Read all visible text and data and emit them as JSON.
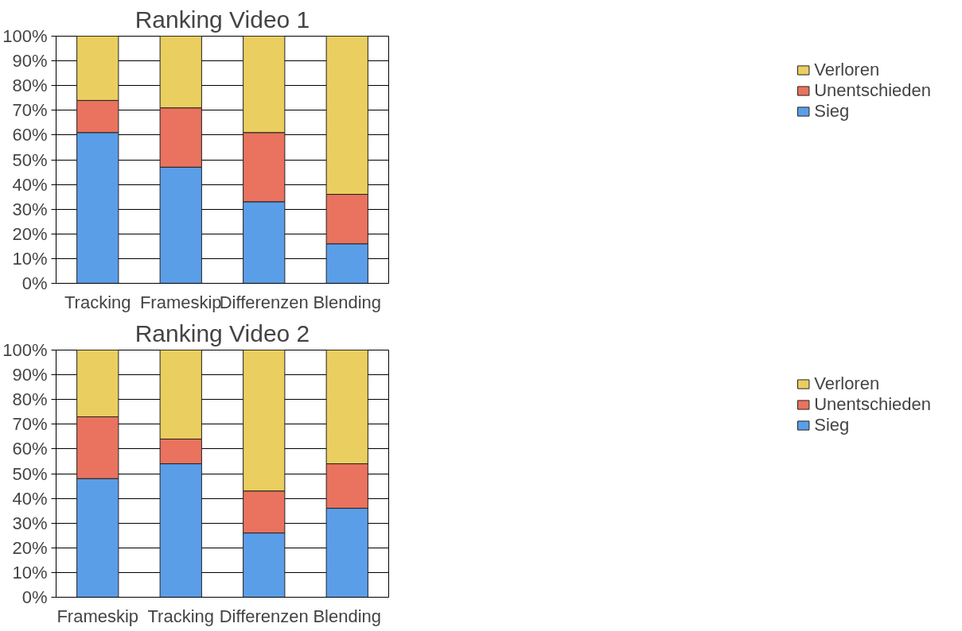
{
  "chart_data": [
    {
      "type": "bar",
      "stacked": true,
      "title": "Ranking Video 1",
      "categories": [
        "Tracking",
        "Frameskip",
        "Differenzen",
        "Blending"
      ],
      "series": [
        {
          "name": "Sieg",
          "color": "#5b9ee8",
          "values": [
            61,
            47,
            33,
            16
          ]
        },
        {
          "name": "Unentschieden",
          "color": "#e9735e",
          "values": [
            13,
            24,
            28,
            20
          ]
        },
        {
          "name": "Verloren",
          "color": "#eacf60",
          "values": [
            26,
            29,
            39,
            64
          ]
        }
      ],
      "ylim": [
        0,
        100
      ],
      "yticks": [
        {
          "value": 0,
          "label": "0%"
        },
        {
          "value": 10,
          "label": "10%"
        },
        {
          "value": 20,
          "label": "20%"
        },
        {
          "value": 30,
          "label": "30%"
        },
        {
          "value": 40,
          "label": "40%"
        },
        {
          "value": 50,
          "label": "50%"
        },
        {
          "value": 60,
          "label": "60%"
        },
        {
          "value": 70,
          "label": "70%"
        },
        {
          "value": 80,
          "label": "80%"
        },
        {
          "value": 90,
          "label": "90%"
        },
        {
          "value": 100,
          "label": "100%"
        }
      ],
      "grid": "y",
      "legend": "right"
    },
    {
      "type": "bar",
      "stacked": true,
      "title": "Ranking Video 2",
      "categories": [
        "Frameskip",
        "Tracking",
        "Differenzen",
        "Blending"
      ],
      "series": [
        {
          "name": "Sieg",
          "color": "#5b9ee8",
          "values": [
            48,
            54,
            26,
            36
          ]
        },
        {
          "name": "Unentschieden",
          "color": "#e9735e",
          "values": [
            25,
            10,
            17,
            18
          ]
        },
        {
          "name": "Verloren",
          "color": "#eacf60",
          "values": [
            27,
            36,
            57,
            46
          ]
        }
      ],
      "ylim": [
        0,
        100
      ],
      "yticks": [
        {
          "value": 0,
          "label": "0%"
        },
        {
          "value": 10,
          "label": "10%"
        },
        {
          "value": 20,
          "label": "20%"
        },
        {
          "value": 30,
          "label": "30%"
        },
        {
          "value": 40,
          "label": "40%"
        },
        {
          "value": 50,
          "label": "50%"
        },
        {
          "value": 60,
          "label": "60%"
        },
        {
          "value": 70,
          "label": "70%"
        },
        {
          "value": 80,
          "label": "80%"
        },
        {
          "value": 90,
          "label": "90%"
        },
        {
          "value": 100,
          "label": "100%"
        }
      ],
      "grid": "y",
      "legend": "right"
    }
  ]
}
